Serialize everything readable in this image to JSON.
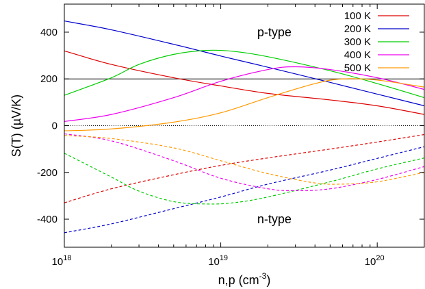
{
  "chart_data": {
    "type": "line",
    "xscale": "log",
    "xlim": [
      1e+18,
      2e+20
    ],
    "ylim": [
      -520,
      520
    ],
    "grid": false,
    "legend_position": "top-right",
    "ylabel": "S(T) (µV/K)",
    "xlabel": {
      "base": "n,p (cm",
      "sup": "-3",
      "close": ")"
    },
    "yticks": [
      -400,
      -200,
      0,
      200,
      400
    ],
    "xticks": [
      {
        "value": 1e+18,
        "base": "10",
        "exp": "18"
      },
      {
        "value": 1e+19,
        "base": "10",
        "exp": "19"
      },
      {
        "value": 1e+20,
        "base": "10",
        "exp": "20"
      }
    ],
    "annotations": [
      {
        "text": "p-type",
        "x": 2.2e+19,
        "y": 400
      },
      {
        "text": "n-type",
        "x": 2.2e+19,
        "y": -400
      }
    ],
    "reference_lines": [
      {
        "y": 200,
        "style": "solid",
        "color": "#000000"
      },
      {
        "y": 0,
        "style": "dotted",
        "color": "#000000"
      }
    ],
    "series": [
      {
        "name": "100 K",
        "color": "#dd0000",
        "p_type": {
          "x": [
            1e+18,
            2e+18,
            5e+18,
            1e+19,
            2e+19,
            5e+19,
            1e+20,
            2e+20
          ],
          "y": [
            320,
            262,
            205,
            170,
            138,
            110,
            85,
            48
          ]
        },
        "n_type": {
          "x": [
            1e+18,
            2e+18,
            5e+18,
            1e+19,
            2e+19,
            5e+19,
            1e+20,
            2e+20
          ],
          "y": [
            -330,
            -270,
            -210,
            -170,
            -138,
            -100,
            -70,
            -38
          ]
        }
      },
      {
        "name": "200 K",
        "color": "#0000cc",
        "p_type": {
          "x": [
            1e+18,
            2e+18,
            5e+18,
            1e+19,
            2e+19,
            5e+19,
            1e+20,
            2e+20
          ],
          "y": [
            448,
            410,
            348,
            298,
            250,
            185,
            135,
            85
          ]
        },
        "n_type": {
          "x": [
            1e+18,
            2e+18,
            5e+18,
            1e+19,
            2e+19,
            5e+19,
            1e+20,
            2e+20
          ],
          "y": [
            -458,
            -420,
            -355,
            -305,
            -250,
            -190,
            -140,
            -90
          ]
        }
      },
      {
        "name": "300 K",
        "color": "#00cc00",
        "p_type": {
          "x": [
            1e+18,
            2e+18,
            3e+18,
            5e+18,
            8e+18,
            1.2e+19,
            2e+19,
            5e+19,
            1e+20,
            2e+20
          ],
          "y": [
            130,
            205,
            262,
            305,
            322,
            318,
            295,
            235,
            180,
            120
          ]
        },
        "n_type": {
          "x": [
            1e+18,
            2e+18,
            3e+18,
            5e+18,
            8e+18,
            1.2e+19,
            2e+19,
            5e+19,
            1e+20,
            2e+20
          ],
          "y": [
            -118,
            -220,
            -280,
            -325,
            -335,
            -330,
            -305,
            -240,
            -185,
            -138
          ]
        }
      },
      {
        "name": "400 K",
        "color": "#ee00ee",
        "p_type": {
          "x": [
            1e+18,
            2e+18,
            5e+18,
            1e+19,
            2e+19,
            3e+19,
            5e+19,
            1e+20,
            2e+20
          ],
          "y": [
            18,
            48,
            120,
            190,
            240,
            252,
            240,
            205,
            155
          ]
        },
        "n_type": {
          "x": [
            1e+18,
            2e+18,
            5e+18,
            1e+19,
            2e+19,
            3e+19,
            5e+19,
            1e+20,
            2e+20
          ],
          "y": [
            -35,
            -65,
            -150,
            -225,
            -270,
            -278,
            -270,
            -230,
            -175
          ]
        }
      },
      {
        "name": "500 K",
        "color": "#ff9900",
        "p_type": {
          "x": [
            1e+18,
            2e+18,
            5e+18,
            1e+19,
            2e+19,
            4e+19,
            6e+19,
            1e+20,
            2e+20
          ],
          "y": [
            -22,
            -14,
            15,
            55,
            120,
            180,
            200,
            195,
            165
          ]
        },
        "n_type": {
          "x": [
            1e+18,
            2e+18,
            5e+18,
            1e+19,
            2e+19,
            4e+19,
            6e+19,
            1e+20,
            2e+20
          ],
          "y": [
            -42,
            -55,
            -95,
            -150,
            -205,
            -245,
            -250,
            -240,
            -200
          ]
        }
      }
    ]
  }
}
